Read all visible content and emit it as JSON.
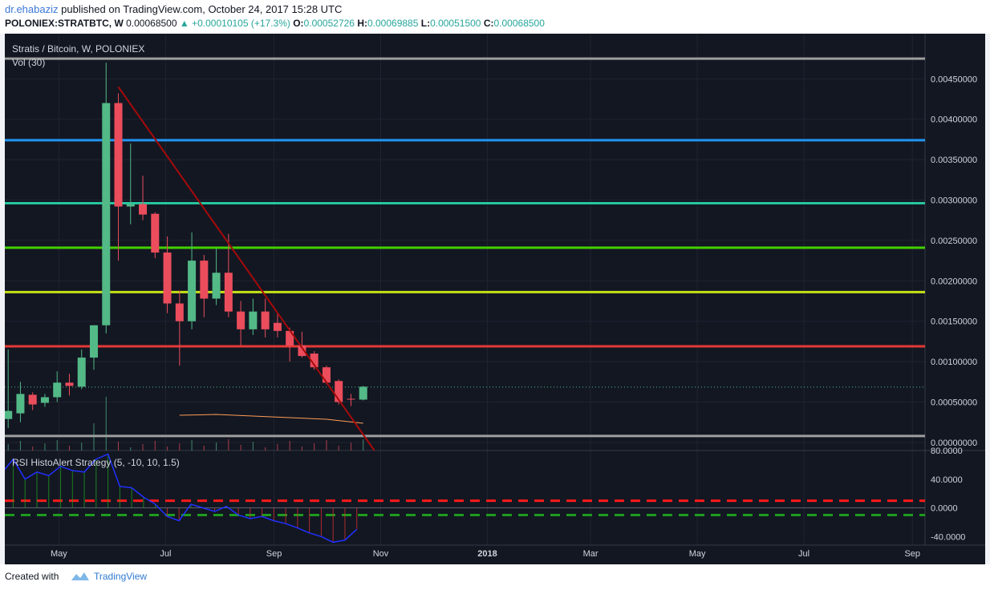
{
  "header": {
    "author": "dr.ehabaziz",
    "published": "published on TradingView.com, October 24, 2017 15:28 UTC",
    "symbol": "POLONIEX:STRATBTC, W",
    "price": "0.00068500",
    "change": "+0.00010105 (+17.3%)",
    "open_label": "O:",
    "open": "0.00052726",
    "high_label": "H:",
    "high": "0.00069885",
    "low_label": "L:",
    "low": "0.00051500",
    "close_label": "C:",
    "close": "0.00068500"
  },
  "legend": {
    "main": "Stratis / Bitcoin, W, POLONIEX",
    "volume": "Vol (30)",
    "rsi": "RSI HistoAlert Strategy (5, -10, 10, 1.5)"
  },
  "footer": {
    "created": "Created with",
    "brand": "TradingView"
  },
  "colors": {
    "background": "#131722",
    "up": "#53b987",
    "down": "#eb4d5c",
    "trendline": "#a50a0a",
    "level_gray": "#9e9e9e",
    "level_blue": "#2196f3",
    "level_teal": "#26c6a0",
    "level_green": "#43d000",
    "level_yellow": "#c5e017",
    "level_red": "#e53935",
    "rsi_line": "#2130ff",
    "rsi_upper": "#ff1a1a",
    "rsi_lower": "#1e9b1e",
    "volume_ma": "#ff9e57"
  },
  "chart_data": [
    {
      "type": "candlestick",
      "title": "Stratis / Bitcoin, W, POLONIEX",
      "xlabel": "",
      "ylabel": "",
      "x_ticks": [
        "May",
        "Jul",
        "Sep",
        "Nov",
        "2018",
        "Mar",
        "May",
        "Jul",
        "Sep"
      ],
      "y_ticks": [
        "0.00450000",
        "0.00400000",
        "0.00350000",
        "0.00300000",
        "0.00250000",
        "0.00200000",
        "0.00150000",
        "0.00100000",
        "0.00050000",
        "0.00000000"
      ],
      "ylim": [
        -0.0001,
        0.0049
      ],
      "candles": [
        {
          "date": "2017-03-26",
          "open": 0.00021,
          "high": 0.00031,
          "low": 0.00014,
          "close": 0.00028
        },
        {
          "date": "2017-04-02",
          "open": 0.00029,
          "high": 0.00115,
          "low": 0.00018,
          "close": 0.00039
        },
        {
          "date": "2017-04-09",
          "open": 0.00036,
          "high": 0.00075,
          "low": 0.00025,
          "close": 0.0006
        },
        {
          "date": "2017-04-16",
          "open": 0.00059,
          "high": 0.00062,
          "low": 0.0004,
          "close": 0.00047
        },
        {
          "date": "2017-04-23",
          "open": 0.00049,
          "high": 0.0006,
          "low": 0.00044,
          "close": 0.00056
        },
        {
          "date": "2017-04-30",
          "open": 0.00056,
          "high": 0.00088,
          "low": 0.0005,
          "close": 0.00074
        },
        {
          "date": "2017-05-07",
          "open": 0.00074,
          "high": 0.00085,
          "low": 0.00058,
          "close": 0.0007
        },
        {
          "date": "2017-05-14",
          "open": 0.00069,
          "high": 0.00115,
          "low": 0.00066,
          "close": 0.00105
        },
        {
          "date": "2017-05-21",
          "open": 0.00105,
          "high": 0.00145,
          "low": 0.0009,
          "close": 0.00145
        },
        {
          "date": "2017-05-28",
          "open": 0.00145,
          "high": 0.0047,
          "low": 0.00135,
          "close": 0.0042
        },
        {
          "date": "2017-06-04",
          "open": 0.0042,
          "high": 0.00432,
          "low": 0.00225,
          "close": 0.00292
        },
        {
          "date": "2017-06-11",
          "open": 0.00292,
          "high": 0.0037,
          "low": 0.0027,
          "close": 0.00295
        },
        {
          "date": "2017-06-18",
          "open": 0.00295,
          "high": 0.0033,
          "low": 0.00275,
          "close": 0.00282
        },
        {
          "date": "2017-06-25",
          "open": 0.00283,
          "high": 0.00285,
          "low": 0.00228,
          "close": 0.00235
        },
        {
          "date": "2017-07-02",
          "open": 0.00235,
          "high": 0.00255,
          "low": 0.0016,
          "close": 0.00172
        },
        {
          "date": "2017-07-09",
          "open": 0.00172,
          "high": 0.00188,
          "low": 0.00095,
          "close": 0.0015
        },
        {
          "date": "2017-07-16",
          "open": 0.0015,
          "high": 0.0026,
          "low": 0.0014,
          "close": 0.00225
        },
        {
          "date": "2017-07-23",
          "open": 0.00225,
          "high": 0.00232,
          "low": 0.00155,
          "close": 0.00178
        },
        {
          "date": "2017-07-30",
          "open": 0.00178,
          "high": 0.0024,
          "low": 0.0017,
          "close": 0.0021
        },
        {
          "date": "2017-08-06",
          "open": 0.0021,
          "high": 0.00258,
          "low": 0.00155,
          "close": 0.00162
        },
        {
          "date": "2017-08-13",
          "open": 0.00162,
          "high": 0.00175,
          "low": 0.0012,
          "close": 0.0014
        },
        {
          "date": "2017-08-20",
          "open": 0.0014,
          "high": 0.00178,
          "low": 0.00133,
          "close": 0.00162
        },
        {
          "date": "2017-08-27",
          "open": 0.00162,
          "high": 0.00178,
          "low": 0.0013,
          "close": 0.0014
        },
        {
          "date": "2017-09-03",
          "open": 0.00148,
          "high": 0.0016,
          "low": 0.0013,
          "close": 0.00138
        },
        {
          "date": "2017-09-10",
          "open": 0.00138,
          "high": 0.00142,
          "low": 0.001,
          "close": 0.0012
        },
        {
          "date": "2017-09-17",
          "open": 0.0012,
          "high": 0.00137,
          "low": 0.00105,
          "close": 0.00107
        },
        {
          "date": "2017-09-24",
          "open": 0.0011,
          "high": 0.00113,
          "low": 0.0009,
          "close": 0.00093
        },
        {
          "date": "2017-10-01",
          "open": 0.00093,
          "high": 0.00095,
          "low": 0.00072,
          "close": 0.00074
        },
        {
          "date": "2017-10-08",
          "open": 0.00076,
          "high": 0.00078,
          "low": 0.00047,
          "close": 0.0005
        },
        {
          "date": "2017-10-15",
          "open": 0.00054,
          "high": 0.0006,
          "low": 0.00045,
          "close": 0.00053
        },
        {
          "date": "2017-10-22",
          "open": 0.00053,
          "high": 0.0007,
          "low": 0.00052,
          "close": 0.00069
        }
      ],
      "horizontal_levels": [
        {
          "value": 0.00475,
          "color": "level_gray"
        },
        {
          "value": 0.00374,
          "color": "level_blue"
        },
        {
          "value": 0.00296,
          "color": "level_teal"
        },
        {
          "value": 0.00241,
          "color": "level_green"
        },
        {
          "value": 0.00186,
          "color": "level_yellow"
        },
        {
          "value": 0.00119,
          "color": "level_red"
        },
        {
          "value": 8e-05,
          "color": "level_gray"
        }
      ],
      "trendline": {
        "start": {
          "date": "2017-06-04",
          "value": 0.0044
        },
        "end": {
          "date": "2017-10-22",
          "value": -0.0001
        }
      },
      "last_price": 0.000685
    },
    {
      "type": "line",
      "title": "RSI HistoAlert Strategy (5, -10, 10, 1.5)",
      "y_ticks": [
        "80.0000",
        "40.0000",
        "0.0000",
        "-40.0000"
      ],
      "ylim": [
        -52,
        80
      ],
      "thresholds": [
        {
          "value": 10,
          "color": "rsi_upper"
        },
        {
          "value": -10,
          "color": "rsi_lower"
        }
      ],
      "series": [
        {
          "values": [
            55,
            48,
            68,
            40,
            50,
            45,
            58,
            52,
            50,
            68,
            75,
            30,
            28,
            15,
            5,
            -12,
            -18,
            5,
            0,
            -5,
            2,
            -10,
            -15,
            -12,
            -18,
            -22,
            -28,
            -35,
            -40,
            -48,
            -45,
            -30
          ]
        }
      ]
    }
  ]
}
